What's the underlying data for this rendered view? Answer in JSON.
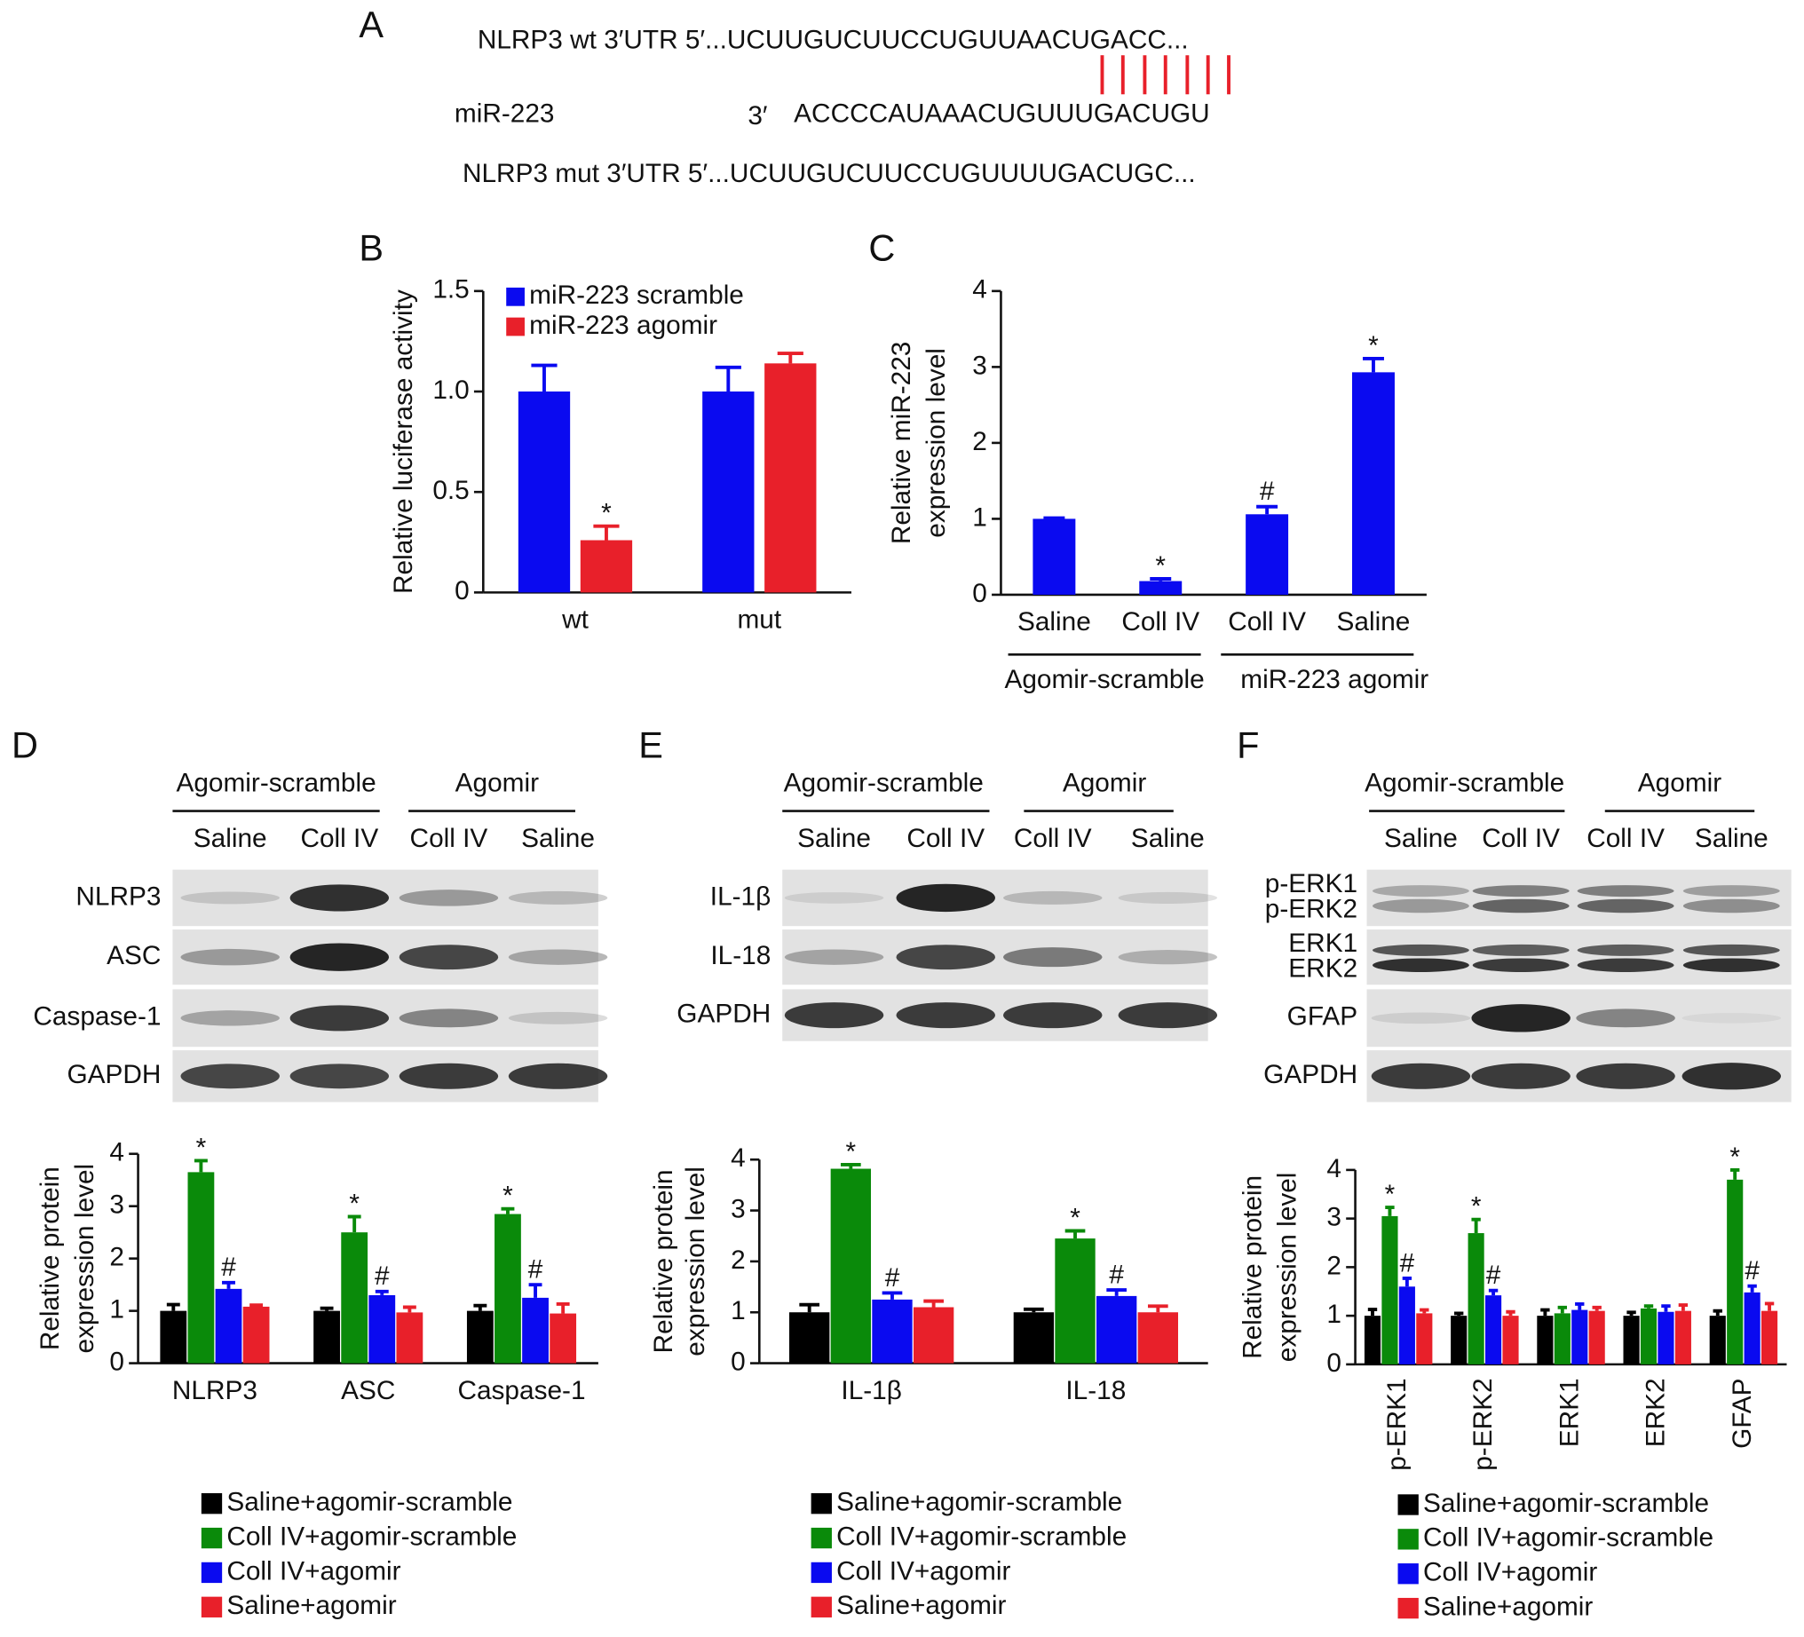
{
  "sequence": {
    "panel": "A",
    "wt": "NLRP3 wt 3′UTR 5′...UCUUGUCUUCCUGUUAACUGACC...",
    "mirna_name": "miR-223",
    "mirna_end": "3′",
    "mirna_seq": "ACCCCAUAAACUGUUUGACUGU",
    "mut": "NLRP3 mut 3′UTR 5′...UCUUGUCUUCCUGUUUUGACUGC..."
  },
  "blots": [
    {
      "panel": "D",
      "groups": [
        "Agomir-scramble",
        "Agomir"
      ],
      "lanes": [
        "Saline",
        "Coll IV",
        "Coll IV",
        "Saline"
      ],
      "rows": [
        [
          "NLRP3"
        ],
        [
          "ASC"
        ],
        [
          "Caspase-1"
        ],
        [
          "GAPDH"
        ]
      ]
    },
    {
      "panel": "E",
      "groups": [
        "Agomir-scramble",
        "Agomir"
      ],
      "lanes": [
        "Saline",
        "Coll IV",
        "Coll IV",
        "Saline"
      ],
      "rows": [
        [
          "IL-1β"
        ],
        [
          "IL-18"
        ],
        [
          "GAPDH"
        ]
      ]
    },
    {
      "panel": "F",
      "groups": [
        "Agomir-scramble",
        "Agomir"
      ],
      "lanes": [
        "Saline",
        "Coll IV",
        "Coll IV",
        "Saline"
      ],
      "rows": [
        [
          "p-ERK1",
          "p-ERK2"
        ],
        [
          "ERK1",
          "ERK2"
        ],
        [
          "GFAP"
        ],
        [
          "GAPDH"
        ]
      ]
    }
  ],
  "chart_data": [
    {
      "type": "bar",
      "panel": "B",
      "y_label": [
        "Relative luciferase activity"
      ],
      "categories": [
        "wt",
        "mut"
      ],
      "legend": "top-left",
      "series": [
        {
          "name": "miR-223 scramble",
          "color": "#0a0af0",
          "values": [
            1.0,
            1.0
          ],
          "errors": [
            0.13,
            0.12
          ]
        },
        {
          "name": "miR-223 agomir",
          "color": "#e8202a",
          "values": [
            0.26,
            1.14
          ],
          "errors": [
            0.07,
            0.05
          ]
        }
      ],
      "annotations": [
        {
          "series": 1,
          "index": 0,
          "text": "*"
        }
      ],
      "ylim": [
        0,
        1.5
      ],
      "yticks": [
        0,
        0.5,
        {
          "value": 1,
          "label": "1.0"
        },
        1.5
      ]
    },
    {
      "type": "bar",
      "panel": "C",
      "y_label": [
        "Relative miR-223",
        "expression level"
      ],
      "categories": [
        "Saline",
        "Coll IV",
        "Coll IV",
        "Saline"
      ],
      "groups": [
        "Agomir-scramble",
        "miR-223 agomir"
      ],
      "series": [
        {
          "color": "#0a0af0",
          "values": [
            1.0,
            0.18,
            1.06,
            2.93
          ],
          "errors": [
            0.01,
            0.03,
            0.1,
            0.18
          ]
        }
      ],
      "annotations": [
        {
          "series": 0,
          "index": 1,
          "text": "*"
        },
        {
          "series": 0,
          "index": 2,
          "text": "#"
        },
        {
          "series": 0,
          "index": 3,
          "text": "*"
        }
      ],
      "ylim": [
        0,
        4
      ],
      "yticks": [
        0,
        1,
        2,
        3,
        4
      ]
    },
    {
      "type": "bar",
      "y_label": [
        "Relative protein",
        "expression level"
      ],
      "categories": [
        "NLRP3",
        "ASC",
        "Caspase-1"
      ],
      "legend": "bottom",
      "series": [
        {
          "name": "Saline+agomir-scramble",
          "color": "#000000",
          "values": [
            1.0,
            1.0,
            1.0
          ],
          "errors": [
            0.12,
            0.05,
            0.1
          ]
        },
        {
          "name": "Coll IV+agomir-scramble",
          "color": "#0a8a0a",
          "values": [
            3.65,
            2.5,
            2.85
          ],
          "errors": [
            0.22,
            0.3,
            0.1
          ]
        },
        {
          "name": "Coll IV+agomir",
          "color": "#0a0af0",
          "values": [
            1.42,
            1.3,
            1.25
          ],
          "errors": [
            0.12,
            0.07,
            0.25
          ]
        },
        {
          "name": "Saline+agomir",
          "color": "#e8202a",
          "values": [
            1.08,
            0.97,
            0.95
          ],
          "errors": [
            0.03,
            0.1,
            0.18
          ]
        }
      ],
      "annotations": [
        {
          "series": 1,
          "index": 0,
          "text": "*"
        },
        {
          "series": 1,
          "index": 1,
          "text": "*"
        },
        {
          "series": 1,
          "index": 2,
          "text": "*"
        },
        {
          "series": 2,
          "index": 0,
          "text": "#"
        },
        {
          "series": 2,
          "index": 1,
          "text": "#"
        },
        {
          "series": 2,
          "index": 2,
          "text": "#"
        }
      ],
      "ylim": [
        0,
        4
      ],
      "yticks": [
        0,
        1,
        2,
        3,
        4
      ]
    },
    {
      "type": "bar",
      "y_label": [
        "Relative protein",
        "expression level"
      ],
      "categories": [
        "IL-1β",
        "IL-18"
      ],
      "legend": "bottom",
      "series": [
        {
          "name": "Saline+agomir-scramble",
          "color": "#000000",
          "values": [
            1.0,
            1.0
          ],
          "errors": [
            0.15,
            0.06
          ]
        },
        {
          "name": "Coll IV+agomir-scramble",
          "color": "#0a8a0a",
          "values": [
            3.82,
            2.45
          ],
          "errors": [
            0.08,
            0.15
          ]
        },
        {
          "name": "Coll IV+agomir",
          "color": "#0a0af0",
          "values": [
            1.25,
            1.32
          ],
          "errors": [
            0.13,
            0.12
          ]
        },
        {
          "name": "Saline+agomir",
          "color": "#e8202a",
          "values": [
            1.1,
            1.0
          ],
          "errors": [
            0.12,
            0.12
          ]
        }
      ],
      "annotations": [
        {
          "series": 1,
          "index": 0,
          "text": "*"
        },
        {
          "series": 1,
          "index": 1,
          "text": "*"
        },
        {
          "series": 2,
          "index": 0,
          "text": "#"
        },
        {
          "series": 2,
          "index": 1,
          "text": "#"
        }
      ],
      "ylim": [
        0,
        4
      ],
      "yticks": [
        0,
        1,
        2,
        3,
        4
      ]
    },
    {
      "type": "bar",
      "y_label": [
        "Relative protein",
        "expression level"
      ],
      "categories": [
        "p-ERK1",
        "p-ERK2",
        "ERK1",
        "ERK2",
        "GFAP"
      ],
      "legend": "bottom",
      "rotate_labels": true,
      "series": [
        {
          "name": "Saline+agomir-scramble",
          "color": "#000000",
          "values": [
            1.0,
            1.0,
            1.0,
            1.0,
            1.0
          ],
          "errors": [
            0.13,
            0.05,
            0.12,
            0.07,
            0.1
          ]
        },
        {
          "name": "Coll IV+agomir-scramble",
          "color": "#0a8a0a",
          "values": [
            3.05,
            2.7,
            1.05,
            1.15,
            3.8
          ],
          "errors": [
            0.18,
            0.28,
            0.12,
            0.05,
            0.2
          ]
        },
        {
          "name": "Coll IV+agomir",
          "color": "#0a0af0",
          "values": [
            1.6,
            1.42,
            1.12,
            1.08,
            1.48
          ],
          "errors": [
            0.17,
            0.1,
            0.12,
            0.12,
            0.13
          ]
        },
        {
          "name": "Saline+agomir",
          "color": "#e8202a",
          "values": [
            1.05,
            1.0,
            1.1,
            1.1,
            1.1
          ],
          "errors": [
            0.07,
            0.08,
            0.07,
            0.12,
            0.15
          ]
        }
      ],
      "annotations": [
        {
          "series": 1,
          "index": 0,
          "text": "*"
        },
        {
          "series": 1,
          "index": 1,
          "text": "*"
        },
        {
          "series": 1,
          "index": 4,
          "text": "*"
        },
        {
          "series": 2,
          "index": 0,
          "text": "#"
        },
        {
          "series": 2,
          "index": 1,
          "text": "#"
        },
        {
          "series": 2,
          "index": 4,
          "text": "#"
        }
      ],
      "ylim": [
        0,
        4
      ],
      "yticks": [
        0,
        1,
        2,
        3,
        4
      ]
    }
  ]
}
